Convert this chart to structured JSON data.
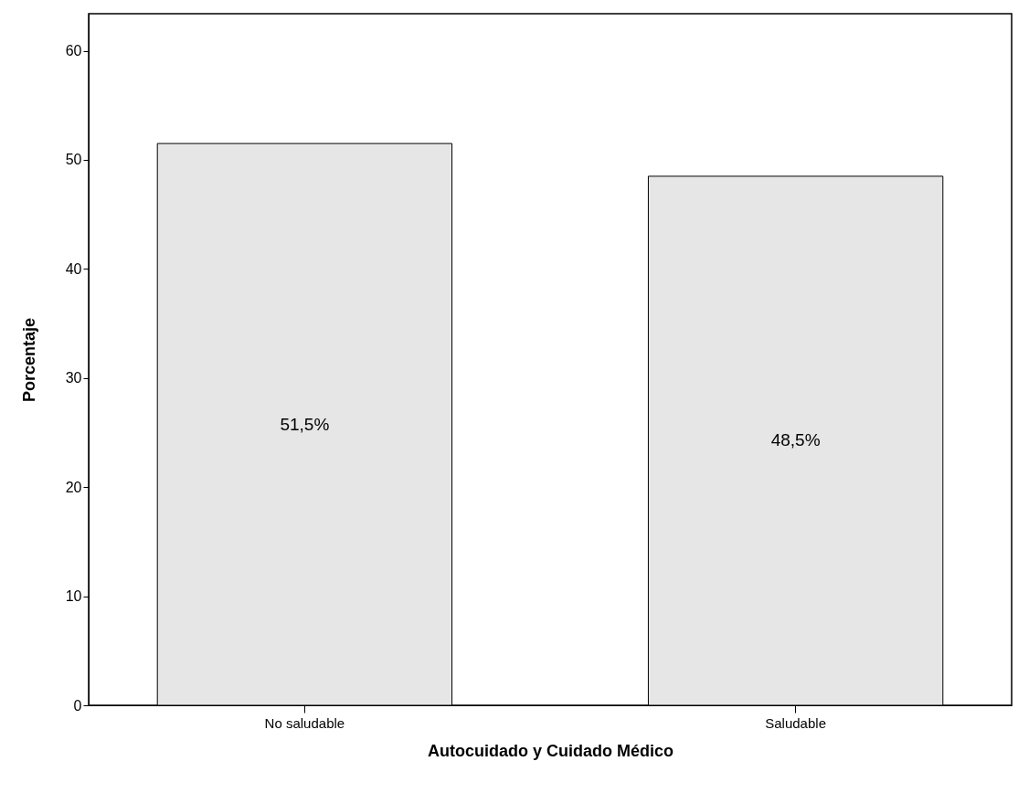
{
  "chart_data": {
    "type": "bar",
    "xlabel": "Autocuidado y Cuidado Médico",
    "ylabel": "Porcentaje",
    "categories": [
      "No saludable",
      "Saludable"
    ],
    "values": [
      51.5,
      48.5
    ],
    "value_labels": [
      "51,5%",
      "48,5%"
    ],
    "color": "#e6e6e6",
    "ylim": [
      0,
      63.4
    ],
    "yticks": [
      0,
      10,
      20,
      30,
      40,
      50,
      60
    ],
    "grid": false
  }
}
